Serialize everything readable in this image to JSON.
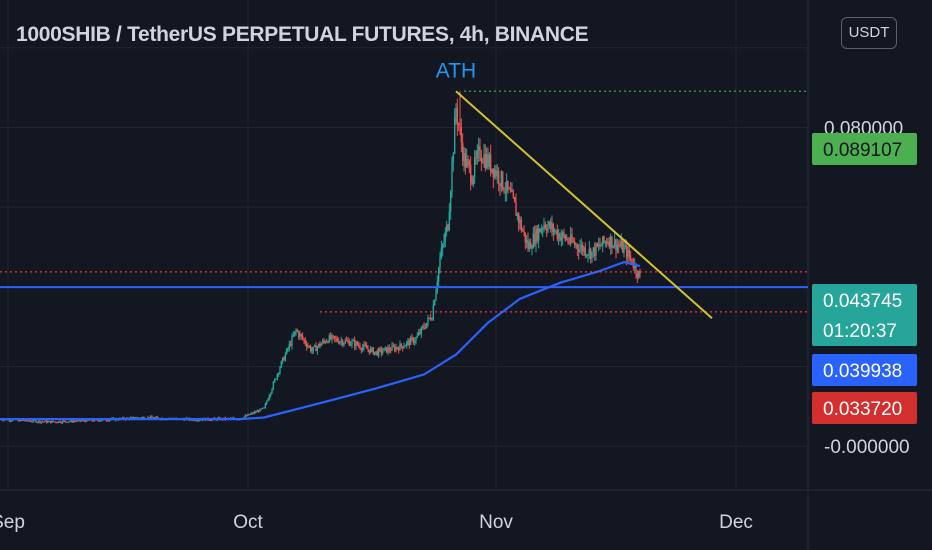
{
  "header": {
    "title": "1000SHIB / TetherUS PERPETUAL FUTURES, 4h, BINANCE",
    "currency_button": "USDT"
  },
  "colors": {
    "background": "#131722",
    "grid": "#1f2430",
    "axis_text": "#d1d4dc",
    "candle_up": "#26a69a",
    "candle_down": "#ef5350",
    "ma_line": "#2962ff",
    "trendline": "#d4c22a",
    "ath_level": "#4caf50",
    "support_level": "#f23645",
    "ath_label": "#2196f3"
  },
  "chart_data": {
    "type": "candlestick",
    "symbol": "1000SHIB / TetherUS PERPETUAL FUTURES",
    "timeframe": "4h",
    "exchange": "BINANCE",
    "currency": "USDT",
    "x_axis": {
      "ticks": [
        "Sep",
        "Oct",
        "Nov",
        "Dec"
      ],
      "range": [
        "2021-08-31",
        "2021-12-10"
      ]
    },
    "y_axis": {
      "visible_tick_labels": [
        "0.080000",
        "-0.000000"
      ],
      "range": [
        -0.011,
        0.112
      ],
      "grid": true
    },
    "annotations": [
      {
        "type": "text",
        "text": "ATH",
        "date": "2021-10-27",
        "value": 0.0925
      }
    ],
    "price_labels": [
      {
        "id": "ath",
        "value": "0.089107"
      },
      {
        "id": "last",
        "value": "0.043745",
        "countdown": "01:20:37"
      },
      {
        "id": "ma",
        "value": "0.039938"
      },
      {
        "id": "support",
        "value": "0.033720"
      }
    ],
    "horizontal_levels": [
      {
        "name": "ath_level",
        "value": 0.089107,
        "style": "dotted",
        "from": "2021-10-28"
      },
      {
        "name": "upper_level",
        "value": 0.043745,
        "style": "dotted",
        "from": "2021-08-31"
      },
      {
        "name": "support_level",
        "value": 0.03372,
        "style": "dotted",
        "from": "2021-10-10"
      },
      {
        "name": "level_line",
        "value": 0.039938,
        "style": "solid",
        "from": "2021-08-31"
      }
    ],
    "trendline": {
      "from": {
        "date": "2021-10-27",
        "value": 0.089107
      },
      "to": {
        "date": "2021-11-28",
        "value": 0.0321
      }
    },
    "price_anchors": [
      {
        "date": "2021-08-31",
        "value": 0.0068
      },
      {
        "date": "2021-09-06",
        "value": 0.0061
      },
      {
        "date": "2021-09-12",
        "value": 0.0065
      },
      {
        "date": "2021-09-18",
        "value": 0.0072
      },
      {
        "date": "2021-09-24",
        "value": 0.0067
      },
      {
        "date": "2021-09-30",
        "value": 0.0069
      },
      {
        "date": "2021-10-03",
        "value": 0.0095
      },
      {
        "date": "2021-10-05",
        "value": 0.02
      },
      {
        "date": "2021-10-07",
        "value": 0.029
      },
      {
        "date": "2021-10-09",
        "value": 0.024
      },
      {
        "date": "2021-10-11",
        "value": 0.027
      },
      {
        "date": "2021-10-14",
        "value": 0.026
      },
      {
        "date": "2021-10-17",
        "value": 0.0235
      },
      {
        "date": "2021-10-20",
        "value": 0.025
      },
      {
        "date": "2021-10-22",
        "value": 0.027
      },
      {
        "date": "2021-10-24",
        "value": 0.033
      },
      {
        "date": "2021-10-25",
        "value": 0.047
      },
      {
        "date": "2021-10-26",
        "value": 0.056
      },
      {
        "date": "2021-10-27",
        "value": 0.085
      },
      {
        "date": "2021-10-28",
        "value": 0.072
      },
      {
        "date": "2021-10-29",
        "value": 0.068
      },
      {
        "date": "2021-10-30",
        "value": 0.074
      },
      {
        "date": "2021-11-01",
        "value": 0.069
      },
      {
        "date": "2021-11-03",
        "value": 0.062
      },
      {
        "date": "2021-11-05",
        "value": 0.05
      },
      {
        "date": "2021-11-07",
        "value": 0.056
      },
      {
        "date": "2021-11-09",
        "value": 0.053
      },
      {
        "date": "2021-11-11",
        "value": 0.0505
      },
      {
        "date": "2021-11-13",
        "value": 0.0485
      },
      {
        "date": "2021-11-15",
        "value": 0.052
      },
      {
        "date": "2021-11-17",
        "value": 0.0495
      },
      {
        "date": "2021-11-18",
        "value": 0.0465
      },
      {
        "date": "2021-11-19",
        "value": 0.0425
      }
    ],
    "ma_anchors": [
      {
        "date": "2021-08-31",
        "value": 0.0068
      },
      {
        "date": "2021-09-30",
        "value": 0.0068
      },
      {
        "date": "2021-10-03",
        "value": 0.0072
      },
      {
        "date": "2021-10-10",
        "value": 0.0108
      },
      {
        "date": "2021-10-17",
        "value": 0.0145
      },
      {
        "date": "2021-10-23",
        "value": 0.018
      },
      {
        "date": "2021-10-27",
        "value": 0.023
      },
      {
        "date": "2021-10-31",
        "value": 0.031
      },
      {
        "date": "2021-11-04",
        "value": 0.037
      },
      {
        "date": "2021-11-09",
        "value": 0.041
      },
      {
        "date": "2021-11-14",
        "value": 0.044
      },
      {
        "date": "2021-11-17",
        "value": 0.0462
      },
      {
        "date": "2021-11-19",
        "value": 0.0452
      }
    ]
  }
}
